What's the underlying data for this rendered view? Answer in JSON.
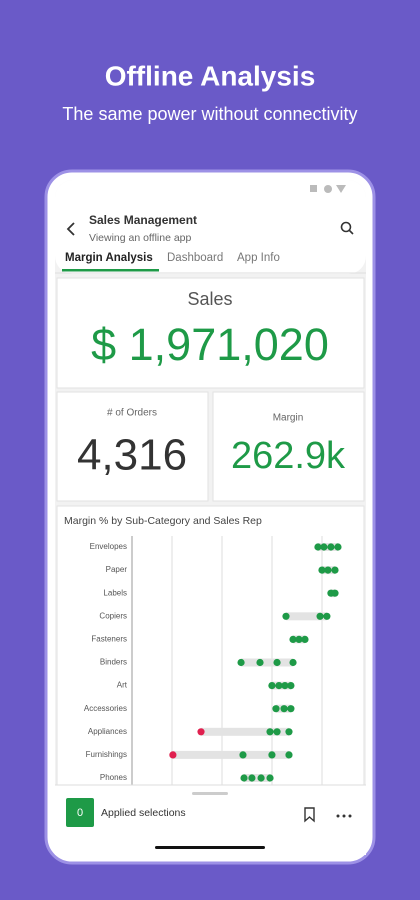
{
  "header": {
    "title": "Offline Analysis",
    "subtitle": "The same power without connectivity"
  },
  "app": {
    "title": "Sales Management",
    "subtitle": "Viewing an offline app",
    "tabs": [
      "Margin Analysis",
      "Dashboard",
      "App Info"
    ]
  },
  "kpis": {
    "sales": {
      "label": "Sales",
      "value": "$ 1,971,020"
    },
    "orders": {
      "label": "# of Orders",
      "value": "4,316"
    },
    "margin": {
      "label": "Margin",
      "value": "262.9k"
    }
  },
  "chart_data": {
    "type": "dot",
    "title": "Margin % by Sub-Category and Sales Rep",
    "xlim": [
      0,
      100
    ],
    "range_color": "#e3e3e3",
    "rows": [
      {
        "category": "Envelopes",
        "values": [
          87.3,
          90.1,
          93.4,
          96.7
        ],
        "colors": [
          "#1e9a47",
          "#1e9a47",
          "#1e9a47",
          "#1e9a47"
        ]
      },
      {
        "category": "Paper",
        "values": [
          89.2,
          92,
          95.3
        ],
        "colors": [
          "#1e9a47",
          "#1e9a47",
          "#1e9a47"
        ]
      },
      {
        "category": "Labels",
        "values": [
          93.4,
          95.3
        ],
        "colors": [
          "#1e9a47",
          "#1e9a47"
        ]
      },
      {
        "category": "Copiers",
        "values": [
          72.3,
          88.3,
          91.5
        ],
        "colors": [
          "#1e9a47",
          "#1e9a47",
          "#1e9a47"
        ]
      },
      {
        "category": "Fasteners",
        "values": [
          75.6,
          78.4,
          81.2
        ],
        "colors": [
          "#1e9a47",
          "#1e9a47",
          "#1e9a47"
        ]
      },
      {
        "category": "Binders",
        "values": [
          51.2,
          60.1,
          68.1,
          75.6
        ],
        "colors": [
          "#1e9a47",
          "#1e9a47",
          "#1e9a47",
          "#1e9a47"
        ]
      },
      {
        "category": "Art",
        "values": [
          65.7,
          69,
          71.8,
          74.6
        ],
        "colors": [
          "#1e9a47",
          "#1e9a47",
          "#1e9a47",
          "#1e9a47"
        ]
      },
      {
        "category": "Accessories",
        "values": [
          67.6,
          71.4,
          74.6
        ],
        "colors": [
          "#1e9a47",
          "#1e9a47",
          "#1e9a47"
        ]
      },
      {
        "category": "Appliances",
        "values": [
          32.4,
          64.8,
          68.1,
          73.7
        ],
        "colors": [
          "#e0204f",
          "#1e9a47",
          "#1e9a47",
          "#1e9a47"
        ]
      },
      {
        "category": "Furnishings",
        "values": [
          19.2,
          52.1,
          65.7,
          73.7
        ],
        "colors": [
          "#e0204f",
          "#1e9a47",
          "#1e9a47",
          "#1e9a47"
        ]
      },
      {
        "category": "Phones",
        "values": [
          52.6,
          56.3,
          60.6,
          64.8
        ],
        "colors": [
          "#1e9a47",
          "#1e9a47",
          "#1e9a47",
          "#1e9a47"
        ]
      }
    ]
  },
  "selections": {
    "count": "0",
    "label": "Applied selections"
  }
}
